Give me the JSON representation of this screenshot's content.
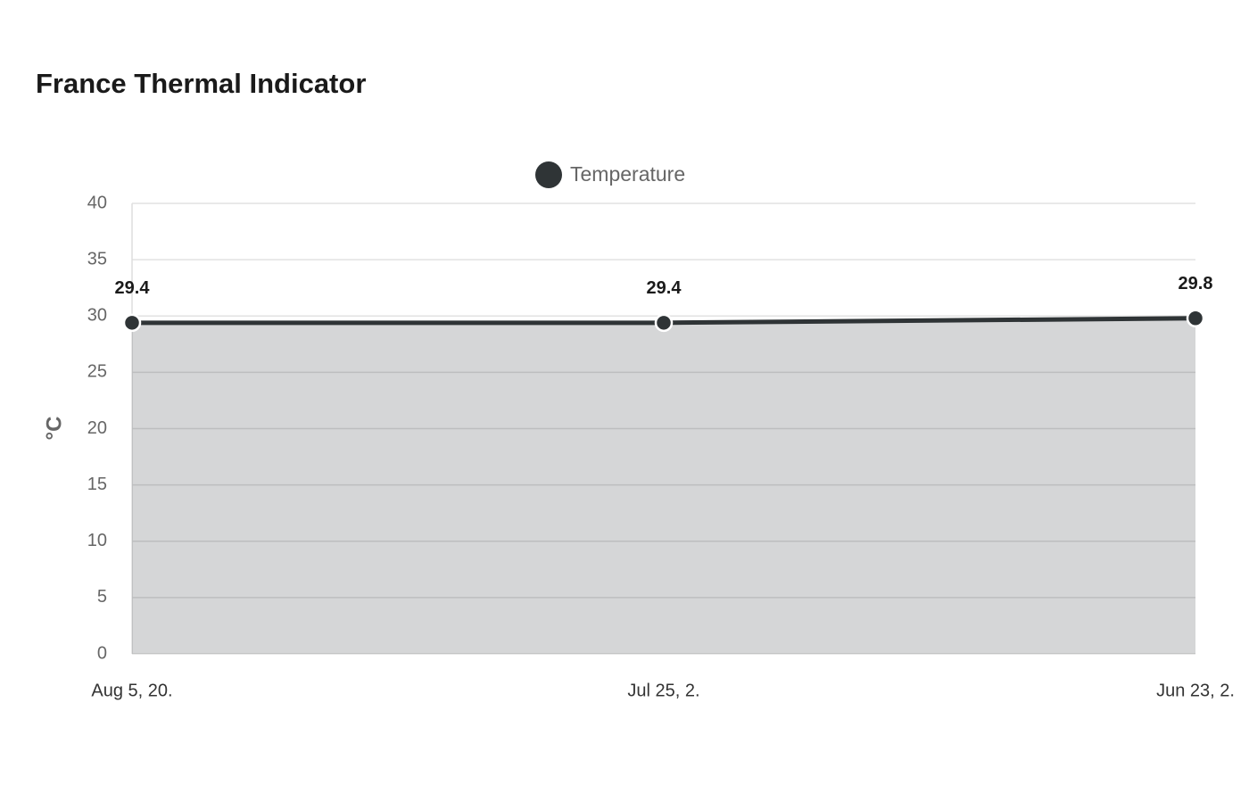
{
  "chart_data": {
    "type": "area",
    "title": "France Thermal Indicator",
    "categories": [
      "Aug 5, 20.",
      "Jul 25, 2.",
      "Jun 23, 2."
    ],
    "series": [
      {
        "name": "Temperature",
        "color": "#2f3436",
        "values": [
          29.4,
          29.4,
          29.8
        ]
      }
    ],
    "ylabel": "°C",
    "ylim": [
      0,
      40
    ],
    "yticks": [
      0,
      5,
      10,
      15,
      20,
      25,
      30,
      35,
      40
    ],
    "grid": true,
    "legend": "top"
  }
}
